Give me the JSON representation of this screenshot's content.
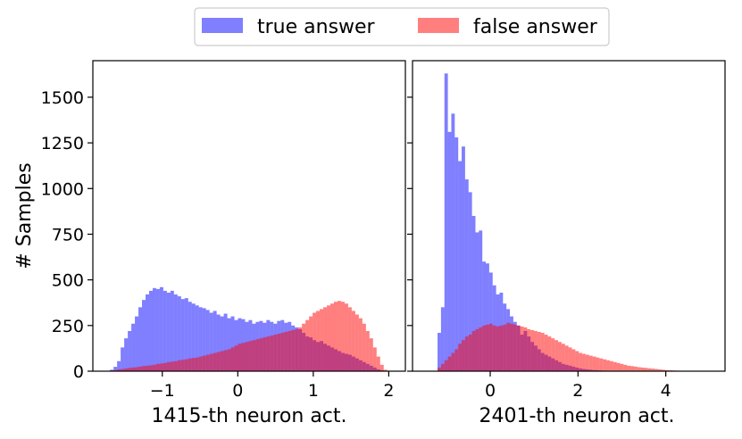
{
  "chart_data": [
    {
      "type": "histogram",
      "xlabel": "1415-th neuron act.",
      "ylabel": "# Samples",
      "xlim": [
        -1.92,
        2.22
      ],
      "ylim": [
        0,
        1700
      ],
      "xticks": [
        -1,
        0,
        1,
        2
      ],
      "xtick_labels": [
        "−1",
        "0",
        "1",
        "2"
      ],
      "yticks": [
        0,
        250,
        500,
        750,
        1000,
        1250,
        1500
      ],
      "ytick_labels": [
        "0",
        "250",
        "500",
        "750",
        "1000",
        "1250",
        "1500"
      ],
      "bin_edges_range": [
        -1.74,
        1.98
      ],
      "series": [
        {
          "name": "true answer",
          "color": "#0000ff",
          "values": [
            2,
            8,
            24,
            55,
            130,
            180,
            220,
            260,
            300,
            350,
            390,
            420,
            440,
            455,
            450,
            460,
            440,
            430,
            440,
            420,
            410,
            395,
            400,
            380,
            370,
            360,
            350,
            345,
            335,
            320,
            330,
            310,
            300,
            315,
            290,
            300,
            280,
            290,
            285,
            270,
            280,
            260,
            270,
            275,
            265,
            280,
            270,
            260,
            275,
            280,
            265,
            270,
            250,
            240,
            230,
            210,
            190,
            185,
            170,
            160,
            165,
            150,
            140,
            130,
            120,
            110,
            100,
            95,
            90,
            80,
            70,
            60,
            50,
            40,
            30,
            20,
            10,
            5,
            2
          ]
        },
        {
          "name": "false answer",
          "color": "#ff0000",
          "values": [
            2,
            4,
            6,
            10,
            12,
            15,
            18,
            20,
            22,
            25,
            28,
            30,
            32,
            35,
            40,
            42,
            45,
            50,
            52,
            55,
            60,
            62,
            65,
            70,
            72,
            75,
            80,
            85,
            90,
            95,
            100,
            105,
            110,
            115,
            120,
            130,
            140,
            150,
            155,
            160,
            165,
            170,
            175,
            180,
            185,
            190,
            195,
            200,
            205,
            210,
            215,
            220,
            225,
            230,
            240,
            260,
            280,
            300,
            320,
            330,
            340,
            350,
            360,
            370,
            380,
            385,
            380,
            370,
            350,
            330,
            310,
            290,
            260,
            220,
            180,
            130,
            80,
            35,
            8
          ]
        }
      ]
    },
    {
      "type": "histogram",
      "xlabel": "2401-th neuron act.",
      "ylabel": "",
      "xlim": [
        -1.77,
        5.35
      ],
      "ylim": [
        0,
        1700
      ],
      "xticks": [
        0,
        2,
        4
      ],
      "xtick_labels": [
        "0",
        "2",
        "4"
      ],
      "yticks": [
        0,
        250,
        500,
        750,
        1000,
        1250,
        1500
      ],
      "ytick_labels": [],
      "bin_edges_range": [
        -1.2,
        5.0
      ],
      "series": [
        {
          "name": "true answer",
          "color": "#0000ff",
          "values": [
            210,
            350,
            1630,
            1310,
            1410,
            1280,
            1150,
            1230,
            1050,
            980,
            850,
            760,
            770,
            600,
            590,
            540,
            470,
            420,
            430,
            370,
            340,
            300,
            270,
            250,
            200,
            220,
            190,
            160,
            140,
            120,
            100,
            90,
            80,
            70,
            60,
            50,
            40,
            35,
            30,
            25,
            20,
            15,
            12,
            10,
            8,
            6,
            5,
            4,
            3,
            2,
            2,
            1,
            1,
            1,
            0,
            0,
            0,
            0,
            0,
            0,
            0,
            0,
            0,
            0,
            0,
            0,
            0,
            0,
            0,
            0,
            0,
            0,
            0,
            0,
            0,
            0,
            0,
            0,
            0
          ]
        },
        {
          "name": "false answer",
          "color": "#ff0000",
          "values": [
            20,
            40,
            60,
            80,
            100,
            120,
            150,
            170,
            190,
            200,
            220,
            230,
            240,
            250,
            255,
            260,
            250,
            245,
            250,
            255,
            265,
            260,
            255,
            250,
            245,
            240,
            230,
            225,
            220,
            215,
            210,
            200,
            190,
            180,
            170,
            160,
            150,
            140,
            130,
            120,
            110,
            100,
            95,
            90,
            85,
            80,
            75,
            70,
            65,
            60,
            55,
            50,
            45,
            40,
            35,
            30,
            28,
            25,
            22,
            20,
            18,
            16,
            14,
            12,
            10,
            8,
            6,
            5,
            4,
            3,
            2,
            2,
            1,
            1,
            1,
            0,
            0,
            0,
            0
          ]
        }
      ]
    }
  ]
}
